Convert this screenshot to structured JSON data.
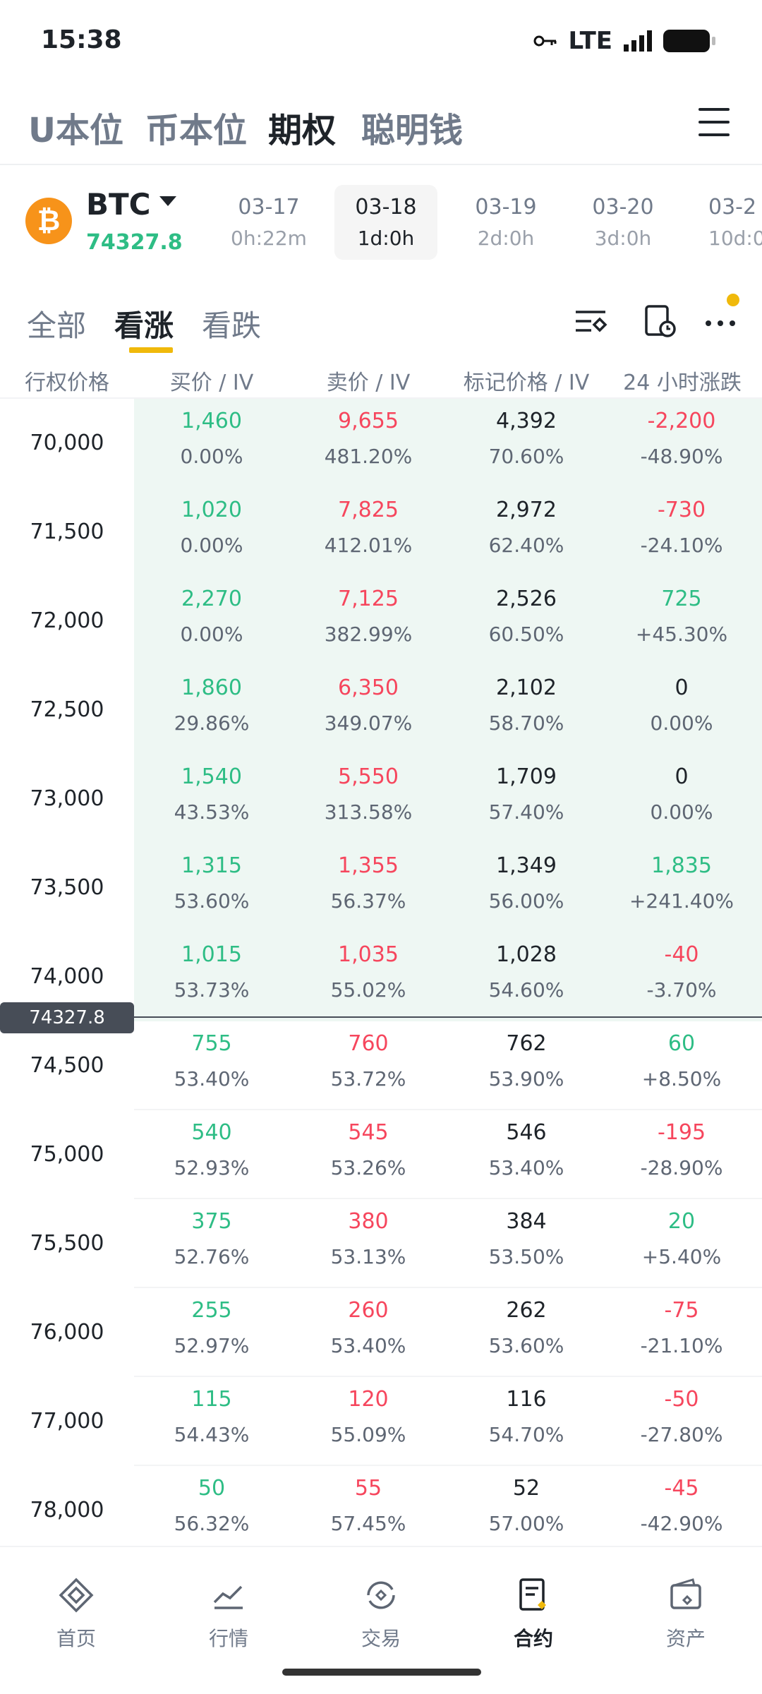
{
  "status": {
    "time": "15:38",
    "network": "LTE"
  },
  "top_tabs": [
    "U本位",
    "币本位",
    "期权",
    "聪明钱"
  ],
  "asset": {
    "name": "BTC",
    "price": "74327.8",
    "icon": "bitcoin-icon"
  },
  "expiries": [
    {
      "date": "03-17",
      "remain": "0h:22m"
    },
    {
      "date": "03-18",
      "remain": "1d:0h"
    },
    {
      "date": "03-19",
      "remain": "2d:0h"
    },
    {
      "date": "03-20",
      "remain": "3d:0h"
    },
    {
      "date": "03-2",
      "remain": "10d:0"
    }
  ],
  "filters": [
    "全部",
    "看涨",
    "看跌"
  ],
  "table_headers": [
    "行权价格",
    "买价 / IV",
    "卖价 / IV",
    "标记价格 / IV",
    "24 小时涨跌"
  ],
  "current_price_tag": "74327.8",
  "rows": [
    {
      "strike": "70,000",
      "bid": "1,460",
      "bid_iv": "0.00%",
      "ask": "9,655",
      "ask_iv": "481.20%",
      "mark": "4,392",
      "mark_iv": "70.60%",
      "chg": "-2,200",
      "chg_pct": "-48.90%"
    },
    {
      "strike": "71,500",
      "bid": "1,020",
      "bid_iv": "0.00%",
      "ask": "7,825",
      "ask_iv": "412.01%",
      "mark": "2,972",
      "mark_iv": "62.40%",
      "chg": "-730",
      "chg_pct": "-24.10%"
    },
    {
      "strike": "72,000",
      "bid": "2,270",
      "bid_iv": "0.00%",
      "ask": "7,125",
      "ask_iv": "382.99%",
      "mark": "2,526",
      "mark_iv": "60.50%",
      "chg": "725",
      "chg_pct": "+45.30%"
    },
    {
      "strike": "72,500",
      "bid": "1,860",
      "bid_iv": "29.86%",
      "ask": "6,350",
      "ask_iv": "349.07%",
      "mark": "2,102",
      "mark_iv": "58.70%",
      "chg": "0",
      "chg_pct": "0.00%"
    },
    {
      "strike": "73,000",
      "bid": "1,540",
      "bid_iv": "43.53%",
      "ask": "5,550",
      "ask_iv": "313.58%",
      "mark": "1,709",
      "mark_iv": "57.40%",
      "chg": "0",
      "chg_pct": "0.00%"
    },
    {
      "strike": "73,500",
      "bid": "1,315",
      "bid_iv": "53.60%",
      "ask": "1,355",
      "ask_iv": "56.37%",
      "mark": "1,349",
      "mark_iv": "56.00%",
      "chg": "1,835",
      "chg_pct": "+241.40%"
    },
    {
      "strike": "74,000",
      "bid": "1,015",
      "bid_iv": "53.73%",
      "ask": "1,035",
      "ask_iv": "55.02%",
      "mark": "1,028",
      "mark_iv": "54.60%",
      "chg": "-40",
      "chg_pct": "-3.70%"
    },
    {
      "strike": "74,500",
      "bid": "755",
      "bid_iv": "53.40%",
      "ask": "760",
      "ask_iv": "53.72%",
      "mark": "762",
      "mark_iv": "53.90%",
      "chg": "60",
      "chg_pct": "+8.50%"
    },
    {
      "strike": "75,000",
      "bid": "540",
      "bid_iv": "52.93%",
      "ask": "545",
      "ask_iv": "53.26%",
      "mark": "546",
      "mark_iv": "53.40%",
      "chg": "-195",
      "chg_pct": "-28.90%"
    },
    {
      "strike": "75,500",
      "bid": "375",
      "bid_iv": "52.76%",
      "ask": "380",
      "ask_iv": "53.13%",
      "mark": "384",
      "mark_iv": "53.50%",
      "chg": "20",
      "chg_pct": "+5.40%"
    },
    {
      "strike": "76,000",
      "bid": "255",
      "bid_iv": "52.97%",
      "ask": "260",
      "ask_iv": "53.40%",
      "mark": "262",
      "mark_iv": "53.60%",
      "chg": "-75",
      "chg_pct": "-21.10%"
    },
    {
      "strike": "77,000",
      "bid": "115",
      "bid_iv": "54.43%",
      "ask": "120",
      "ask_iv": "55.09%",
      "mark": "116",
      "mark_iv": "54.70%",
      "chg": "-50",
      "chg_pct": "-27.80%"
    },
    {
      "strike": "78,000",
      "bid": "50",
      "bid_iv": "56.32%",
      "ask": "55",
      "ask_iv": "57.45%",
      "mark": "52",
      "mark_iv": "57.00%",
      "chg": "-45",
      "chg_pct": "-42.90%"
    }
  ],
  "bottom_nav": [
    {
      "label": "首页",
      "icon": "home-icon"
    },
    {
      "label": "行情",
      "icon": "chart-icon"
    },
    {
      "label": "交易",
      "icon": "trade-icon"
    },
    {
      "label": "合约",
      "icon": "futures-icon"
    },
    {
      "label": "资产",
      "icon": "wallet-icon"
    }
  ],
  "colors": {
    "green": "#2ebd85",
    "red": "#f6465d",
    "accent": "#f0b90b"
  }
}
